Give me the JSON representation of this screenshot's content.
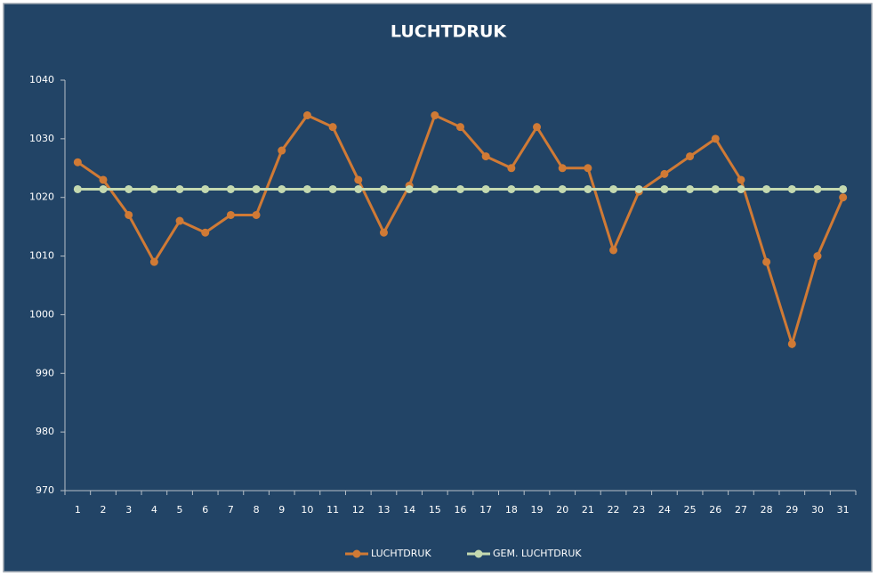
{
  "chart_data": {
    "type": "line",
    "title": "LUCHTDRUK",
    "categories": [
      "1",
      "2",
      "3",
      "4",
      "5",
      "6",
      "7",
      "8",
      "9",
      "10",
      "11",
      "12",
      "13",
      "14",
      "15",
      "16",
      "17",
      "18",
      "19",
      "20",
      "21",
      "22",
      "23",
      "24",
      "25",
      "26",
      "27",
      "28",
      "29",
      "30",
      "31"
    ],
    "series": [
      {
        "name": "LUCHTDRUK",
        "color": "#d07a35",
        "values": [
          1026,
          1023,
          1017,
          1009,
          1016,
          1014,
          1017,
          1017,
          1028,
          1034,
          1032,
          1023,
          1014,
          1022,
          1034,
          1032,
          1027,
          1025,
          1032,
          1025,
          1025,
          1011,
          1021,
          1024,
          1027,
          1030,
          1023,
          1009,
          995,
          1010,
          1020
        ]
      },
      {
        "name": "GEM. LUCHTDRUK",
        "color": "#c4d9b0",
        "values": [
          1021.4,
          1021.4,
          1021.4,
          1021.4,
          1021.4,
          1021.4,
          1021.4,
          1021.4,
          1021.4,
          1021.4,
          1021.4,
          1021.4,
          1021.4,
          1021.4,
          1021.4,
          1021.4,
          1021.4,
          1021.4,
          1021.4,
          1021.4,
          1021.4,
          1021.4,
          1021.4,
          1021.4,
          1021.4,
          1021.4,
          1021.4,
          1021.4,
          1021.4,
          1021.4,
          1021.4
        ]
      }
    ],
    "ylim": [
      970,
      1040
    ],
    "yticks": [
      970,
      980,
      990,
      1000,
      1010,
      1020,
      1030,
      1040
    ],
    "grid": false,
    "legend": "bottom"
  }
}
